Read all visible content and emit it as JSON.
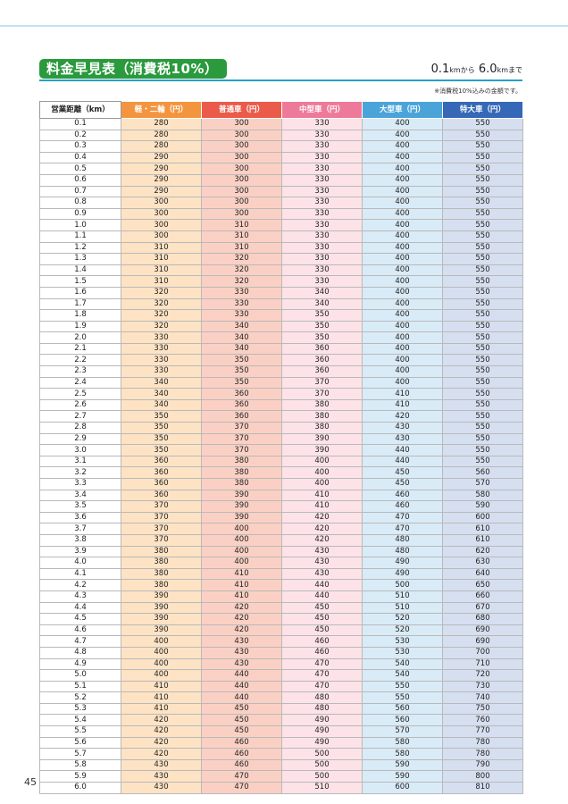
{
  "title": "料金早見表（消費税10%）",
  "range": {
    "from": "0.1",
    "from_unit": "km",
    "from_suffix": "から",
    "to": "6.0",
    "to_unit": "km",
    "to_suffix": "まで"
  },
  "note": "※消費税10%込みの金額です。",
  "columns": [
    "営業距離（km）",
    "軽・二輪（円）",
    "普通車（円）",
    "中型車（円）",
    "大型車（円）",
    "特大車（円）"
  ],
  "rows": [
    [
      "0.1",
      "280",
      "300",
      "330",
      "400",
      "550"
    ],
    [
      "0.2",
      "280",
      "300",
      "330",
      "400",
      "550"
    ],
    [
      "0.3",
      "280",
      "300",
      "330",
      "400",
      "550"
    ],
    [
      "0.4",
      "290",
      "300",
      "330",
      "400",
      "550"
    ],
    [
      "0.5",
      "290",
      "300",
      "330",
      "400",
      "550"
    ],
    [
      "0.6",
      "290",
      "300",
      "330",
      "400",
      "550"
    ],
    [
      "0.7",
      "290",
      "300",
      "330",
      "400",
      "550"
    ],
    [
      "0.8",
      "300",
      "300",
      "330",
      "400",
      "550"
    ],
    [
      "0.9",
      "300",
      "300",
      "330",
      "400",
      "550"
    ],
    [
      "1.0",
      "300",
      "310",
      "330",
      "400",
      "550"
    ],
    [
      "1.1",
      "300",
      "310",
      "330",
      "400",
      "550"
    ],
    [
      "1.2",
      "310",
      "310",
      "330",
      "400",
      "550"
    ],
    [
      "1.3",
      "310",
      "320",
      "330",
      "400",
      "550"
    ],
    [
      "1.4",
      "310",
      "320",
      "330",
      "400",
      "550"
    ],
    [
      "1.5",
      "310",
      "320",
      "330",
      "400",
      "550"
    ],
    [
      "1.6",
      "320",
      "330",
      "340",
      "400",
      "550"
    ],
    [
      "1.7",
      "320",
      "330",
      "340",
      "400",
      "550"
    ],
    [
      "1.8",
      "320",
      "330",
      "350",
      "400",
      "550"
    ],
    [
      "1.9",
      "320",
      "340",
      "350",
      "400",
      "550"
    ],
    [
      "2.0",
      "330",
      "340",
      "350",
      "400",
      "550"
    ],
    [
      "2.1",
      "330",
      "340",
      "360",
      "400",
      "550"
    ],
    [
      "2.2",
      "330",
      "350",
      "360",
      "400",
      "550"
    ],
    [
      "2.3",
      "330",
      "350",
      "360",
      "400",
      "550"
    ],
    [
      "2.4",
      "340",
      "350",
      "370",
      "400",
      "550"
    ],
    [
      "2.5",
      "340",
      "360",
      "370",
      "410",
      "550"
    ],
    [
      "2.6",
      "340",
      "360",
      "380",
      "410",
      "550"
    ],
    [
      "2.7",
      "350",
      "360",
      "380",
      "420",
      "550"
    ],
    [
      "2.8",
      "350",
      "370",
      "380",
      "430",
      "550"
    ],
    [
      "2.9",
      "350",
      "370",
      "390",
      "430",
      "550"
    ],
    [
      "3.0",
      "350",
      "370",
      "390",
      "440",
      "550"
    ],
    [
      "3.1",
      "360",
      "380",
      "400",
      "440",
      "550"
    ],
    [
      "3.2",
      "360",
      "380",
      "400",
      "450",
      "560"
    ],
    [
      "3.3",
      "360",
      "380",
      "400",
      "450",
      "570"
    ],
    [
      "3.4",
      "360",
      "390",
      "410",
      "460",
      "580"
    ],
    [
      "3.5",
      "370",
      "390",
      "410",
      "460",
      "590"
    ],
    [
      "3.6",
      "370",
      "390",
      "420",
      "470",
      "600"
    ],
    [
      "3.7",
      "370",
      "400",
      "420",
      "470",
      "610"
    ],
    [
      "3.8",
      "370",
      "400",
      "420",
      "480",
      "610"
    ],
    [
      "3.9",
      "380",
      "400",
      "430",
      "480",
      "620"
    ],
    [
      "4.0",
      "380",
      "400",
      "430",
      "490",
      "630"
    ],
    [
      "4.1",
      "380",
      "410",
      "430",
      "490",
      "640"
    ],
    [
      "4.2",
      "380",
      "410",
      "440",
      "500",
      "650"
    ],
    [
      "4.3",
      "390",
      "410",
      "440",
      "510",
      "660"
    ],
    [
      "4.4",
      "390",
      "420",
      "450",
      "510",
      "670"
    ],
    [
      "4.5",
      "390",
      "420",
      "450",
      "520",
      "680"
    ],
    [
      "4.6",
      "390",
      "420",
      "450",
      "520",
      "690"
    ],
    [
      "4.7",
      "400",
      "430",
      "460",
      "530",
      "690"
    ],
    [
      "4.8",
      "400",
      "430",
      "460",
      "530",
      "700"
    ],
    [
      "4.9",
      "400",
      "430",
      "470",
      "540",
      "710"
    ],
    [
      "5.0",
      "400",
      "440",
      "470",
      "540",
      "720"
    ],
    [
      "5.1",
      "410",
      "440",
      "470",
      "550",
      "730"
    ],
    [
      "5.2",
      "410",
      "440",
      "480",
      "550",
      "740"
    ],
    [
      "5.3",
      "410",
      "450",
      "480",
      "560",
      "750"
    ],
    [
      "5.4",
      "420",
      "450",
      "490",
      "560",
      "760"
    ],
    [
      "5.5",
      "420",
      "450",
      "490",
      "570",
      "770"
    ],
    [
      "5.6",
      "420",
      "460",
      "490",
      "580",
      "780"
    ],
    [
      "5.7",
      "420",
      "460",
      "500",
      "580",
      "780"
    ],
    [
      "5.8",
      "430",
      "460",
      "500",
      "590",
      "790"
    ],
    [
      "5.9",
      "430",
      "470",
      "500",
      "590",
      "800"
    ],
    [
      "6.0",
      "430",
      "470",
      "510",
      "600",
      "810"
    ]
  ],
  "page_number": "45"
}
